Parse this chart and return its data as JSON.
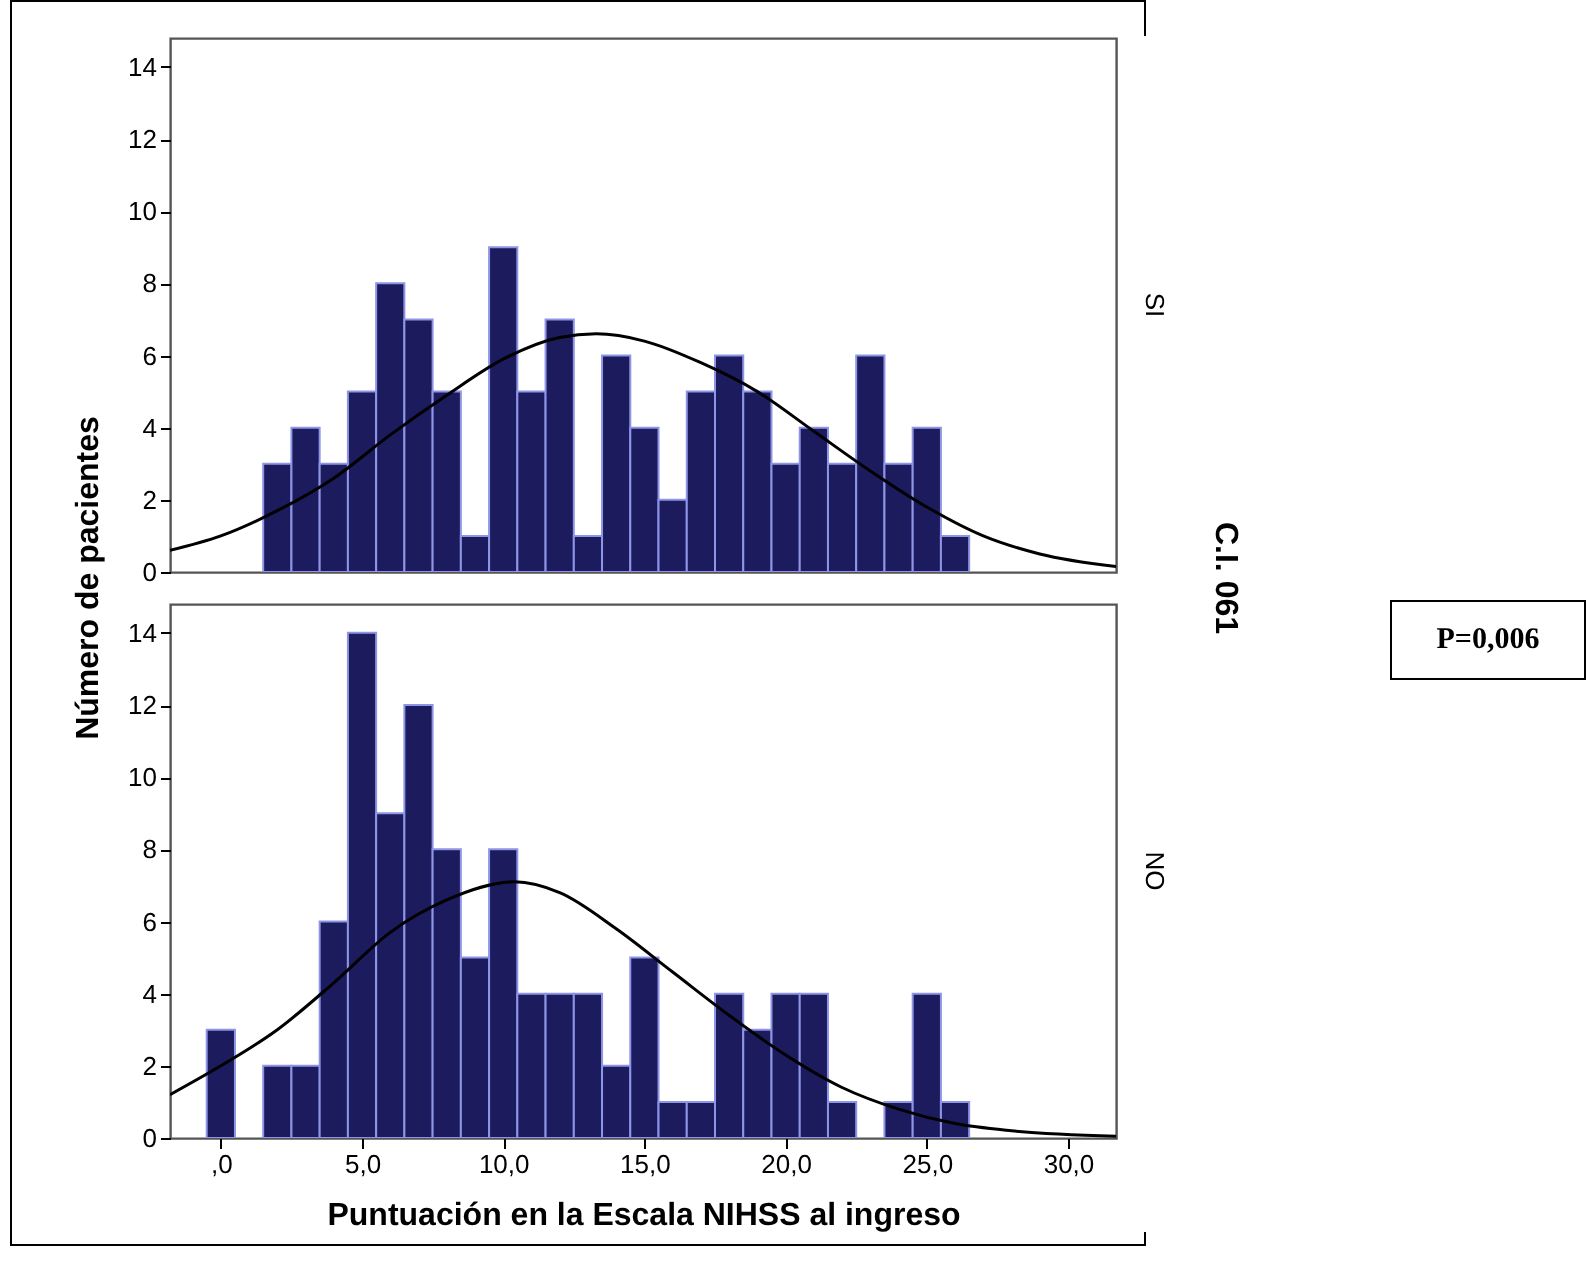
{
  "chart_data": [
    {
      "type": "histogram",
      "ylabel": "Número de pacientes",
      "y2label": "SI",
      "annotations": [
        "C.I. 061",
        "P=0,006"
      ],
      "xlim": [
        -1.8,
        31.7
      ],
      "ylim": [
        0,
        14.8
      ],
      "yticks": [
        0,
        2,
        4,
        6,
        8,
        10,
        12,
        14
      ],
      "tick_labels": "y",
      "marker": "none",
      "series": [
        {
          "color": "#1b1b5e",
          "bins": [
            1.5,
            2.5,
            3.5,
            4.5,
            5.5,
            6.5,
            7.5,
            8.5,
            9.5,
            10.5,
            11.5,
            12.5,
            13.5,
            14.5,
            15.5,
            16.5,
            17.5,
            18.5,
            19.5,
            20.5,
            21.5,
            22.5,
            23.5,
            24.5,
            25.5,
            26.5
          ],
          "values": [
            3,
            4,
            3,
            5,
            8,
            7,
            5,
            1,
            9,
            5,
            7,
            1,
            6,
            4,
            2,
            5,
            6,
            5,
            3,
            4,
            3,
            6,
            3,
            4,
            1
          ]
        },
        {
          "type": "line",
          "color": "#000000",
          "x": [
            -1.8,
            0,
            2,
            4,
            6,
            8,
            10,
            12,
            13.3,
            15,
            17,
            19,
            21,
            23,
            25,
            27,
            29,
            31.7
          ],
          "values": [
            0.6,
            1.0,
            1.7,
            2.6,
            3.8,
            4.9,
            5.9,
            6.5,
            6.6,
            6.4,
            5.8,
            5.0,
            3.9,
            2.8,
            1.8,
            1.0,
            0.5,
            0.15
          ]
        }
      ]
    },
    {
      "type": "histogram",
      "xlabel": "Puntuación en la Escala NIHSS al ingreso",
      "y2label": "NO",
      "xlim": [
        -1.8,
        31.7
      ],
      "xticks": [
        {
          "value": 0,
          "label": ",0"
        },
        {
          "value": 5,
          "label": "5,0"
        },
        {
          "value": 10,
          "label": "10,0"
        },
        {
          "value": 15,
          "label": "15,0"
        },
        {
          "value": 20,
          "label": "20,0"
        },
        {
          "value": 25,
          "label": "25,0"
        },
        {
          "value": 30,
          "label": "30,0"
        }
      ],
      "ylim": [
        0,
        14.8
      ],
      "yticks": [
        0,
        2,
        4,
        6,
        8,
        10,
        12,
        14
      ],
      "marker": "none",
      "series": [
        {
          "color": "#1b1b5e",
          "bins": [
            -0.5,
            0.5,
            1.5,
            2.5,
            3.5,
            4.5,
            5.5,
            6.5,
            7.5,
            8.5,
            9.5,
            10.5,
            11.5,
            12.5,
            13.5,
            14.5,
            15.5,
            16.5,
            17.5,
            18.5,
            19.5,
            20.5,
            21.5,
            22.5,
            23.5,
            24.5,
            25.5,
            26.5
          ],
          "values": [
            3,
            0,
            2,
            2,
            6,
            14,
            9,
            12,
            8,
            5,
            8,
            4,
            4,
            4,
            2,
            5,
            1,
            1,
            4,
            3,
            4,
            4,
            1,
            0,
            1,
            4,
            1
          ]
        },
        {
          "type": "line",
          "color": "#000000",
          "x": [
            -1.8,
            0,
            2,
            4,
            6,
            8,
            10.4,
            12,
            14,
            16,
            18,
            20,
            22,
            24,
            26,
            28,
            31.7
          ],
          "values": [
            1.2,
            2.0,
            3.0,
            4.3,
            5.7,
            6.6,
            7.1,
            6.8,
            5.8,
            4.6,
            3.4,
            2.3,
            1.4,
            0.8,
            0.4,
            0.2,
            0.05
          ]
        }
      ]
    }
  ]
}
